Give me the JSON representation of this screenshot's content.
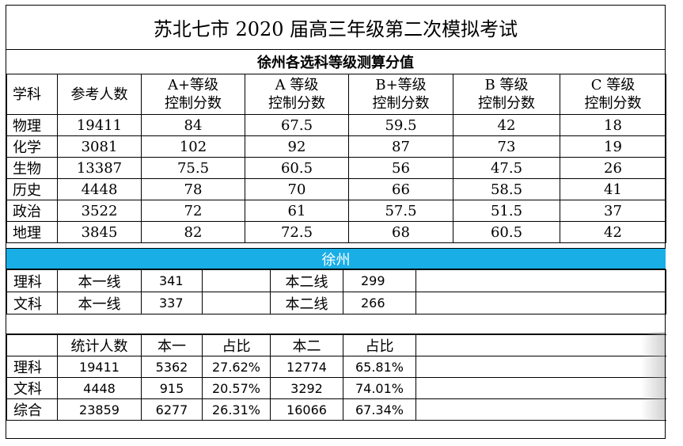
{
  "title": "苏北七市 2020 届高三年级第二次模拟考试",
  "subtitle": "徐州各选科等级测算分值",
  "grade_table": {
    "headers": [
      [
        "学科"
      ],
      [
        "参考人数"
      ],
      [
        "A+等级",
        "控制分数"
      ],
      [
        "A 等级",
        "控制分数"
      ],
      [
        "B+等级",
        "控制分数"
      ],
      [
        "B 等级",
        "控制分数"
      ],
      [
        "C 等级",
        "控制分数"
      ]
    ],
    "rows": [
      {
        "subject": "物理",
        "count": "19411",
        "a_plus": "84",
        "a": "67.5",
        "b_plus": "59.5",
        "b": "42",
        "c": "18"
      },
      {
        "subject": "化学",
        "count": "3081",
        "a_plus": "102",
        "a": "92",
        "b_plus": "87",
        "b": "73",
        "c": "19"
      },
      {
        "subject": "生物",
        "count": "13387",
        "a_plus": "75.5",
        "a": "60.5",
        "b_plus": "56",
        "b": "47.5",
        "c": "26"
      },
      {
        "subject": "历史",
        "count": "4448",
        "a_plus": "78",
        "a": "70",
        "b_plus": "66",
        "b": "58.5",
        "c": "41"
      },
      {
        "subject": "政治",
        "count": "3522",
        "a_plus": "72",
        "a": "61",
        "b_plus": "57.5",
        "b": "51.5",
        "c": "37"
      },
      {
        "subject": "地理",
        "count": "3845",
        "a_plus": "82",
        "a": "72.5",
        "b_plus": "68",
        "b": "60.5",
        "c": "42"
      }
    ]
  },
  "banner": {
    "label": "徐州",
    "color": "#19aee6"
  },
  "cutoff_table": {
    "rows": [
      {
        "track": "理科",
        "line1_label": "本一线",
        "line1_value": "341",
        "line2_label": "本二线",
        "line2_value": "299"
      },
      {
        "track": "文科",
        "line1_label": "本一线",
        "line1_value": "337",
        "line2_label": "本二线",
        "line2_value": "266"
      }
    ]
  },
  "stats_table": {
    "headers": [
      "",
      "统计人数",
      "本一",
      "占比",
      "本二",
      "占比"
    ],
    "rows": [
      {
        "track": "理科",
        "count": "19411",
        "tier1": "5362",
        "tier1_pct": "27.62%",
        "tier2": "12774",
        "tier2_pct": "65.81%"
      },
      {
        "track": "文科",
        "count": "4448",
        "tier1": "915",
        "tier1_pct": "20.57%",
        "tier2": "3292",
        "tier2_pct": "74.01%"
      },
      {
        "track": "综合",
        "count": "23859",
        "tier1": "6277",
        "tier1_pct": "26.31%",
        "tier2": "16066",
        "tier2_pct": "67.34%"
      }
    ]
  }
}
